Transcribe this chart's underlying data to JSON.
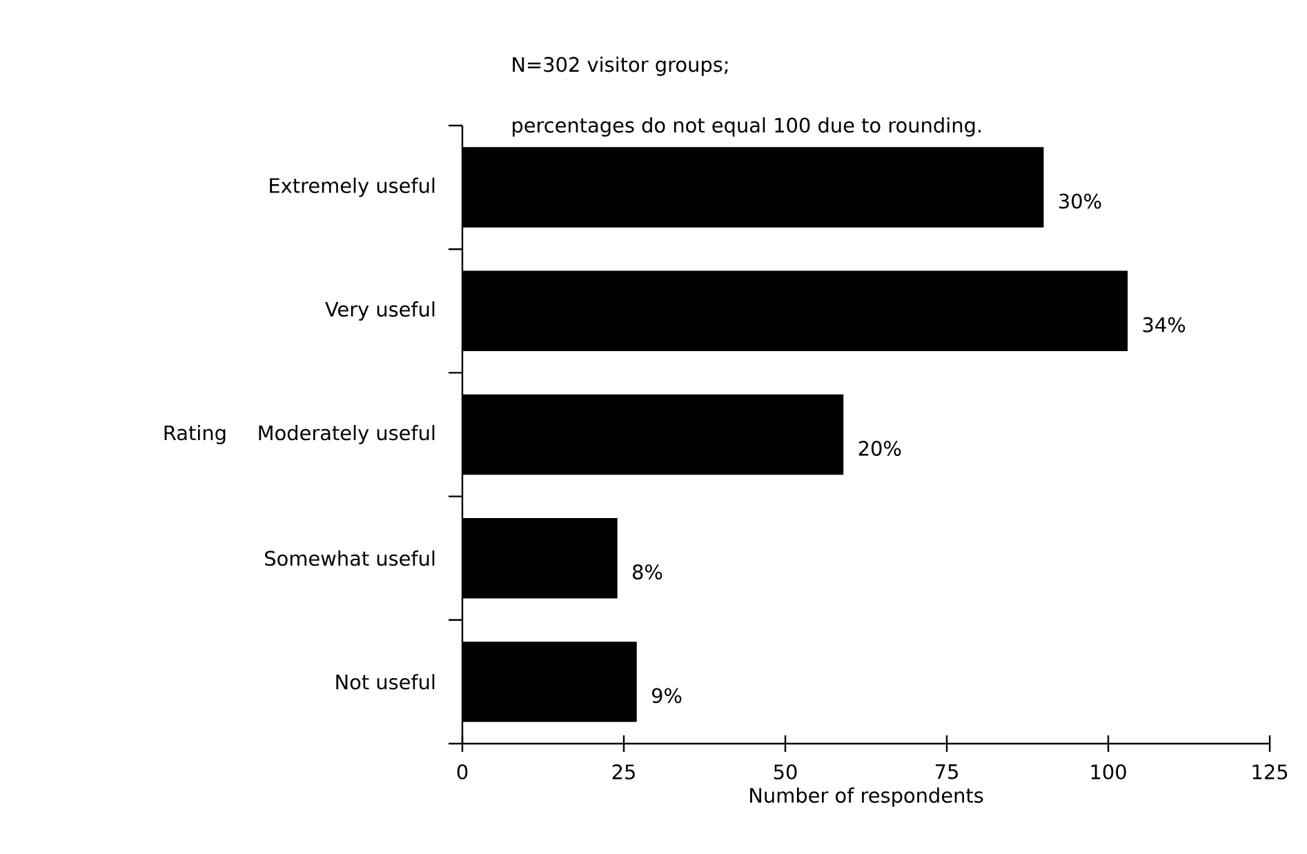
{
  "chart_data": {
    "type": "bar",
    "orientation": "horizontal",
    "annotations": [
      "N=302 visitor groups;",
      "percentages do not equal 100 due to rounding.",
      {
        "text": "30%",
        "x": 90,
        "y": "Extremely useful"
      },
      {
        "text": "34%",
        "x": 103,
        "y": "Very useful"
      },
      {
        "text": "20%",
        "x": 59,
        "y": "Moderately useful"
      },
      {
        "text": "8%",
        "x": 24,
        "y": "Somewhat useful"
      },
      {
        "text": "9%",
        "x": 27,
        "y": "Not useful"
      }
    ],
    "xlabel": "Number of respondents",
    "ylabel": "Rating",
    "categories": [
      "Extremely useful",
      "Very useful",
      "Moderately useful",
      "Somewhat useful",
      "Not useful"
    ],
    "values": [
      90,
      103,
      59,
      24,
      27
    ],
    "color": "#000000",
    "xlim": [
      0,
      125
    ],
    "xticks": [
      0,
      25,
      50,
      75,
      100,
      125
    ]
  }
}
